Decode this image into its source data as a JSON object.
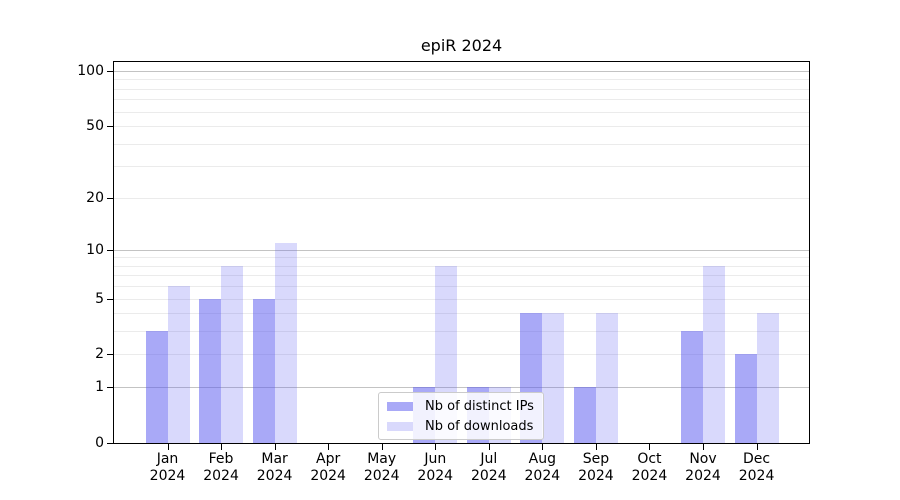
{
  "title": "epiR 2024",
  "chart_data": {
    "type": "bar",
    "title": "epiR 2024",
    "categories": [
      "Jan",
      "Feb",
      "Mar",
      "Apr",
      "May",
      "Jun",
      "Jul",
      "Aug",
      "Sep",
      "Oct",
      "Nov",
      "Dec"
    ],
    "year_label": "2024",
    "series": [
      {
        "name": "Nb of distinct IPs",
        "color": "rgba(90,90,240,0.52)",
        "values": [
          3,
          5,
          5,
          0,
          0,
          1,
          1,
          4,
          1,
          0,
          3,
          2
        ]
      },
      {
        "name": "Nb of downloads",
        "color": "rgba(90,90,240,0.23)",
        "values": [
          6,
          8,
          11,
          0,
          0,
          8,
          1,
          4,
          4,
          0,
          8,
          4
        ]
      }
    ],
    "y_axis": {
      "scale": "log1p",
      "ticks": [
        0,
        1,
        2,
        5,
        10,
        20,
        50,
        100
      ],
      "max": 112,
      "major_gridlines": [
        1,
        10,
        100
      ],
      "minor_gridlines": [
        2,
        3,
        4,
        5,
        6,
        7,
        8,
        9,
        20,
        30,
        40,
        50,
        60,
        70,
        80,
        90
      ]
    },
    "legend_position": "lower-center",
    "grid": true
  },
  "colors": {
    "major_grid": "#c3c3c3",
    "minor_grid": "#ebebeb",
    "axis": "#000000",
    "background": "#ffffff"
  }
}
